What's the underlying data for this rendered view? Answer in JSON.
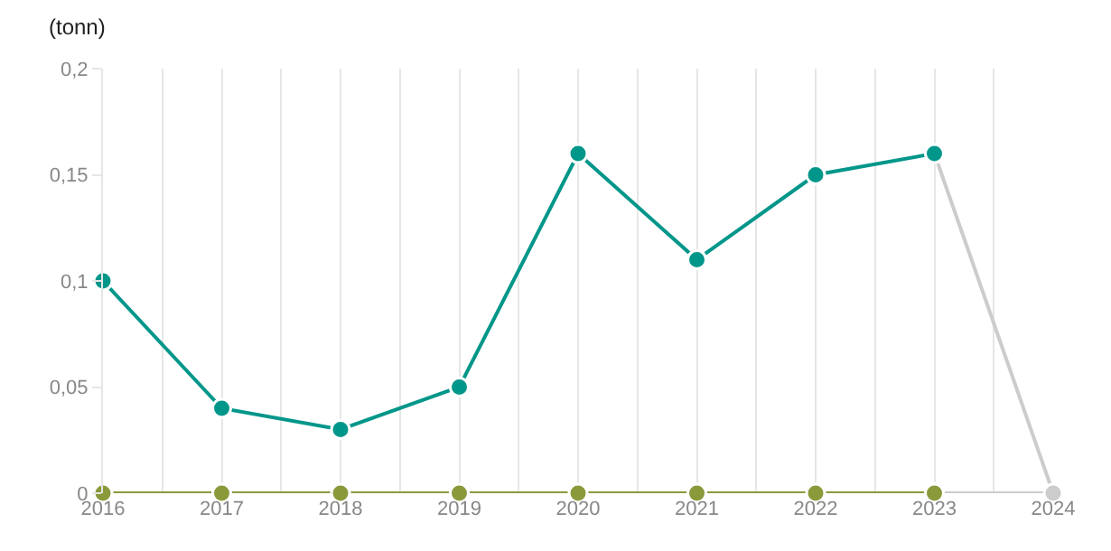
{
  "chart_data": {
    "type": "line",
    "ylabel": "(tonn)",
    "x": [
      2016,
      2017,
      2018,
      2019,
      2020,
      2021,
      2022,
      2023,
      2024
    ],
    "series": [
      {
        "color": "#cccccc",
        "values": [
          null,
          null,
          null,
          null,
          null,
          null,
          null,
          0.16,
          0
        ]
      },
      {
        "color": "#cccccc",
        "values": [
          null,
          null,
          null,
          null,
          null,
          null,
          null,
          0,
          0
        ]
      },
      {
        "color": "#8a9a3b",
        "values": [
          0,
          0,
          0,
          0,
          0,
          0,
          0,
          0,
          null
        ]
      },
      {
        "color": "#00968a",
        "values": [
          0.1,
          0.04,
          0.03,
          0.05,
          0.16,
          0.11,
          0.15,
          0.16,
          null
        ]
      }
    ],
    "xlim": [
      2016,
      2024
    ],
    "xticks": [
      2016,
      {
        "value": 2016.5,
        "label": null
      },
      2017,
      {
        "value": 2017.5,
        "label": null
      },
      2018,
      {
        "value": 2018.5,
        "label": null
      },
      2019,
      {
        "value": 2019.5,
        "label": null
      },
      2020,
      {
        "value": 2020.5,
        "label": null
      },
      2021,
      {
        "value": 2021.5,
        "label": null
      },
      2022,
      {
        "value": 2022.5,
        "label": null
      },
      2023,
      {
        "value": 2023.5,
        "label": null
      },
      2024
    ],
    "ylim": [
      0,
      0.2
    ],
    "yticks": [
      {
        "value": 0,
        "label": "0"
      },
      {
        "value": 0.05,
        "label": "0,05"
      },
      {
        "value": 0.1,
        "label": "0,1"
      },
      {
        "value": 0.15,
        "label": "0,15"
      },
      {
        "value": 0.2,
        "label": "0,2"
      }
    ],
    "grid": "x",
    "marker": "circle",
    "line_style": "solid"
  }
}
